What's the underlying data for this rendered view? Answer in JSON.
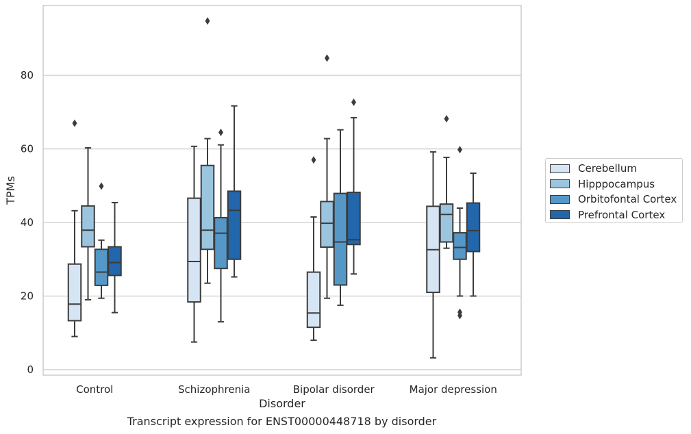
{
  "chart_data": {
    "type": "boxplot",
    "xlabel": "Disorder",
    "ylabel": "TPMs",
    "caption": "Transcript expression for ENST00000448718 by disorder",
    "categories": [
      "Control",
      "Schizophrenia",
      "Bipolar disorder",
      "Major depression"
    ],
    "ylim": [
      -1.5,
      99
    ],
    "yticks": [
      0,
      20,
      40,
      60,
      80
    ],
    "grid": true,
    "legend_position": "right",
    "series": [
      {
        "name": "Cerebellum",
        "color": "#d6e5f3",
        "boxes": [
          {
            "whisker_low": 9,
            "q1": 13.3,
            "median": 17.8,
            "q3": 28.7,
            "whisker_high": 43.2,
            "outliers": [
              67
            ]
          },
          {
            "whisker_low": 7.5,
            "q1": 18.4,
            "median": 29.4,
            "q3": 46.6,
            "whisker_high": 60.7,
            "outliers": []
          },
          {
            "whisker_low": 8,
            "q1": 11.5,
            "median": 15.4,
            "q3": 26.5,
            "whisker_high": 41.5,
            "outliers": [
              57
            ]
          },
          {
            "whisker_low": 3.2,
            "q1": 21,
            "median": 32.6,
            "q3": 44.4,
            "whisker_high": 59.2,
            "outliers": []
          }
        ]
      },
      {
        "name": "Hipppocampus",
        "color": "#9bc5df",
        "boxes": [
          {
            "whisker_low": 19,
            "q1": 33.4,
            "median": 37.9,
            "q3": 44.5,
            "whisker_high": 60.3,
            "outliers": []
          },
          {
            "whisker_low": 23.5,
            "q1": 32.7,
            "median": 37.9,
            "q3": 55.5,
            "whisker_high": 62.8,
            "outliers": [
              94.8
            ]
          },
          {
            "whisker_low": 19.4,
            "q1": 33.3,
            "median": 39.8,
            "q3": 45.7,
            "whisker_high": 62.8,
            "outliers": [
              84.7
            ]
          },
          {
            "whisker_low": 33,
            "q1": 34.7,
            "median": 42.2,
            "q3": 45,
            "whisker_high": 57.7,
            "outliers": [
              68.2
            ]
          }
        ]
      },
      {
        "name": "Orbitofontal Cortex",
        "color": "#5598c8",
        "boxes": [
          {
            "whisker_low": 19.4,
            "q1": 22.9,
            "median": 26.5,
            "q3": 32.7,
            "whisker_high": 35.2,
            "outliers": [
              49.9
            ]
          },
          {
            "whisker_low": 13,
            "q1": 27.5,
            "median": 37.1,
            "q3": 41.3,
            "whisker_high": 61.1,
            "outliers": [
              64.5
            ]
          },
          {
            "whisker_low": 17.5,
            "q1": 23,
            "median": 34.7,
            "q3": 47.9,
            "whisker_high": 65.2,
            "outliers": []
          },
          {
            "whisker_low": 20,
            "q1": 30,
            "median": 33.2,
            "q3": 37.2,
            "whisker_high": 43.9,
            "outliers": [
              59.8,
              15.6,
              14.7
            ]
          }
        ]
      },
      {
        "name": "Prefrontal Cortex",
        "color": "#2266ab",
        "boxes": [
          {
            "whisker_low": 15.5,
            "q1": 25.6,
            "median": 29.1,
            "q3": 33.4,
            "whisker_high": 45.4,
            "outliers": []
          },
          {
            "whisker_low": 25.2,
            "q1": 30,
            "median": 43.3,
            "q3": 48.5,
            "whisker_high": 71.7,
            "outliers": []
          },
          {
            "whisker_low": 26,
            "q1": 34,
            "median": 35.3,
            "q3": 48.2,
            "whisker_high": 68.5,
            "outliers": [
              72.7
            ]
          },
          {
            "whisker_low": 20,
            "q1": 32.1,
            "median": 37.8,
            "q3": 45.3,
            "whisker_high": 53.4,
            "outliers": []
          }
        ]
      }
    ]
  }
}
